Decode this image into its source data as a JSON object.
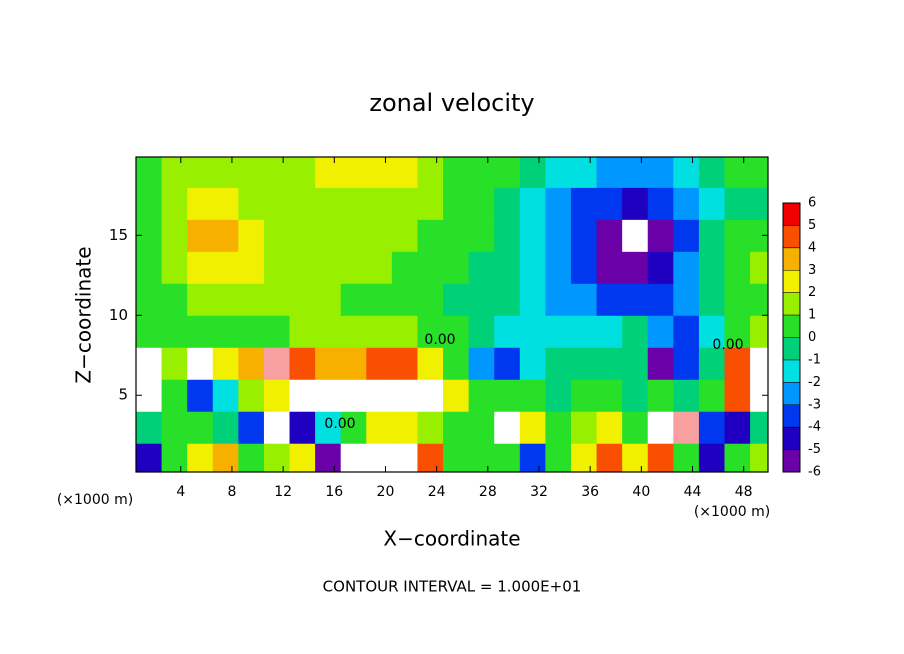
{
  "chart_data": {
    "type": "contour",
    "title": "zonal velocity",
    "x_label": "X−coordinate",
    "y_label": "Z−coordinate",
    "x_unit_labels": [
      "(×1000 m)",
      "(×1000 m)"
    ],
    "contour_labels": [
      "0.00",
      "0.00",
      "0.00"
    ],
    "footer": "CONTOUR INTERVAL = 1.000E+01",
    "xlim": [
      0.5,
      49.9
    ],
    "ylim": [
      0.2,
      19.9
    ],
    "xticks": [
      4,
      8,
      12,
      16,
      20,
      24,
      28,
      32,
      36,
      40,
      44,
      48
    ],
    "yticks": [
      5,
      10,
      15
    ],
    "x": [
      1.5,
      3.5,
      5.5,
      7.5,
      9.5,
      11.5,
      13.5,
      15.5,
      17.5,
      19.5,
      21.5,
      23.5,
      25.5,
      27.5,
      29.5,
      31.5,
      33.5,
      35.5,
      37.5,
      39.5,
      41.5,
      43.5,
      45.5,
      47.5,
      49.5
    ],
    "y": [
      1,
      3,
      5,
      7,
      9,
      11,
      13,
      15,
      17,
      19
    ],
    "z": [
      [
        -4,
        1,
        3,
        4,
        0.5,
        2,
        3,
        -5,
        8,
        8,
        8,
        5,
        1,
        0.5,
        1,
        -3,
        1,
        3,
        5,
        3,
        5,
        1,
        -4,
        1,
        2
      ],
      [
        0,
        0.5,
        1,
        0,
        -3,
        8,
        -4,
        -1,
        1,
        3,
        3,
        2,
        0.5,
        0.5,
        8,
        3,
        0.5,
        2,
        3,
        1,
        7,
        6,
        -3,
        -4,
        0
      ],
      [
        8,
        1,
        -3,
        -1,
        2,
        3,
        8,
        8,
        8,
        8,
        8,
        8,
        3,
        0.5,
        0.5,
        0.5,
        0,
        0.5,
        0.5,
        0,
        0.5,
        0,
        1,
        5,
        8
      ],
      [
        7,
        2,
        8,
        3,
        4,
        6,
        5,
        4,
        4,
        5,
        5,
        3,
        1,
        -2,
        -3,
        -1,
        -0.5,
        0,
        0,
        0,
        -6,
        -3,
        0,
        5,
        7
      ],
      [
        0.5,
        0.5,
        1,
        1,
        1,
        1,
        1.5,
        1.5,
        1.5,
        1.5,
        1.5,
        1,
        0.5,
        0,
        -1,
        -1.5,
        -1.5,
        -1,
        -1,
        0,
        -2,
        -3,
        -1,
        0.5,
        1.5
      ],
      [
        0.5,
        1,
        1.5,
        2,
        2,
        2,
        1.5,
        1.5,
        1,
        1,
        1,
        0.5,
        0,
        0,
        -0.5,
        -1,
        -2,
        -2.5,
        -3,
        -3,
        -3,
        -2,
        0,
        0.5,
        0.5
      ],
      [
        1,
        1.5,
        2.5,
        3,
        2.5,
        2,
        1.5,
        1.5,
        1.5,
        1.5,
        1,
        0.5,
        0.5,
        0,
        -0.5,
        -1.5,
        -2.5,
        -3.5,
        -5,
        -5,
        -4,
        -2.5,
        -0.5,
        1,
        1.5
      ],
      [
        1,
        2,
        3.5,
        4,
        3,
        2,
        2,
        1.5,
        1.5,
        1.5,
        1.5,
        1,
        0.5,
        0.5,
        0,
        -1,
        -2.5,
        -3.5,
        -5,
        -8,
        -5,
        -3,
        -0.5,
        1,
        1
      ],
      [
        1,
        2,
        3,
        3,
        2,
        2,
        2,
        2,
        2,
        2,
        2,
        1.5,
        1,
        0.5,
        0,
        -1,
        -2,
        -3,
        -3.5,
        -4,
        -3.5,
        -2.5,
        -1,
        0,
        0
      ],
      [
        1,
        1.5,
        1.5,
        2,
        2,
        2,
        2,
        2.5,
        2.5,
        2.5,
        2.5,
        2,
        1,
        0.5,
        0.5,
        0,
        -1,
        -1.5,
        -2,
        -2.5,
        -2,
        -1,
        0,
        0.5,
        0.5
      ]
    ],
    "levels": [
      -6,
      -5,
      -4,
      -3,
      -2,
      -1,
      0,
      1,
      2,
      3,
      4,
      5,
      6
    ],
    "colors": [
      "#6a00a8",
      "#2000c0",
      "#0038f0",
      "#0098ff",
      "#00e0e0",
      "#00d078",
      "#28e028",
      "#98f000",
      "#f0f000",
      "#f8b000",
      "#f85000",
      "#f00000"
    ],
    "top_color": "#f8a0a0",
    "out_of_range_color": "#ffffff"
  }
}
